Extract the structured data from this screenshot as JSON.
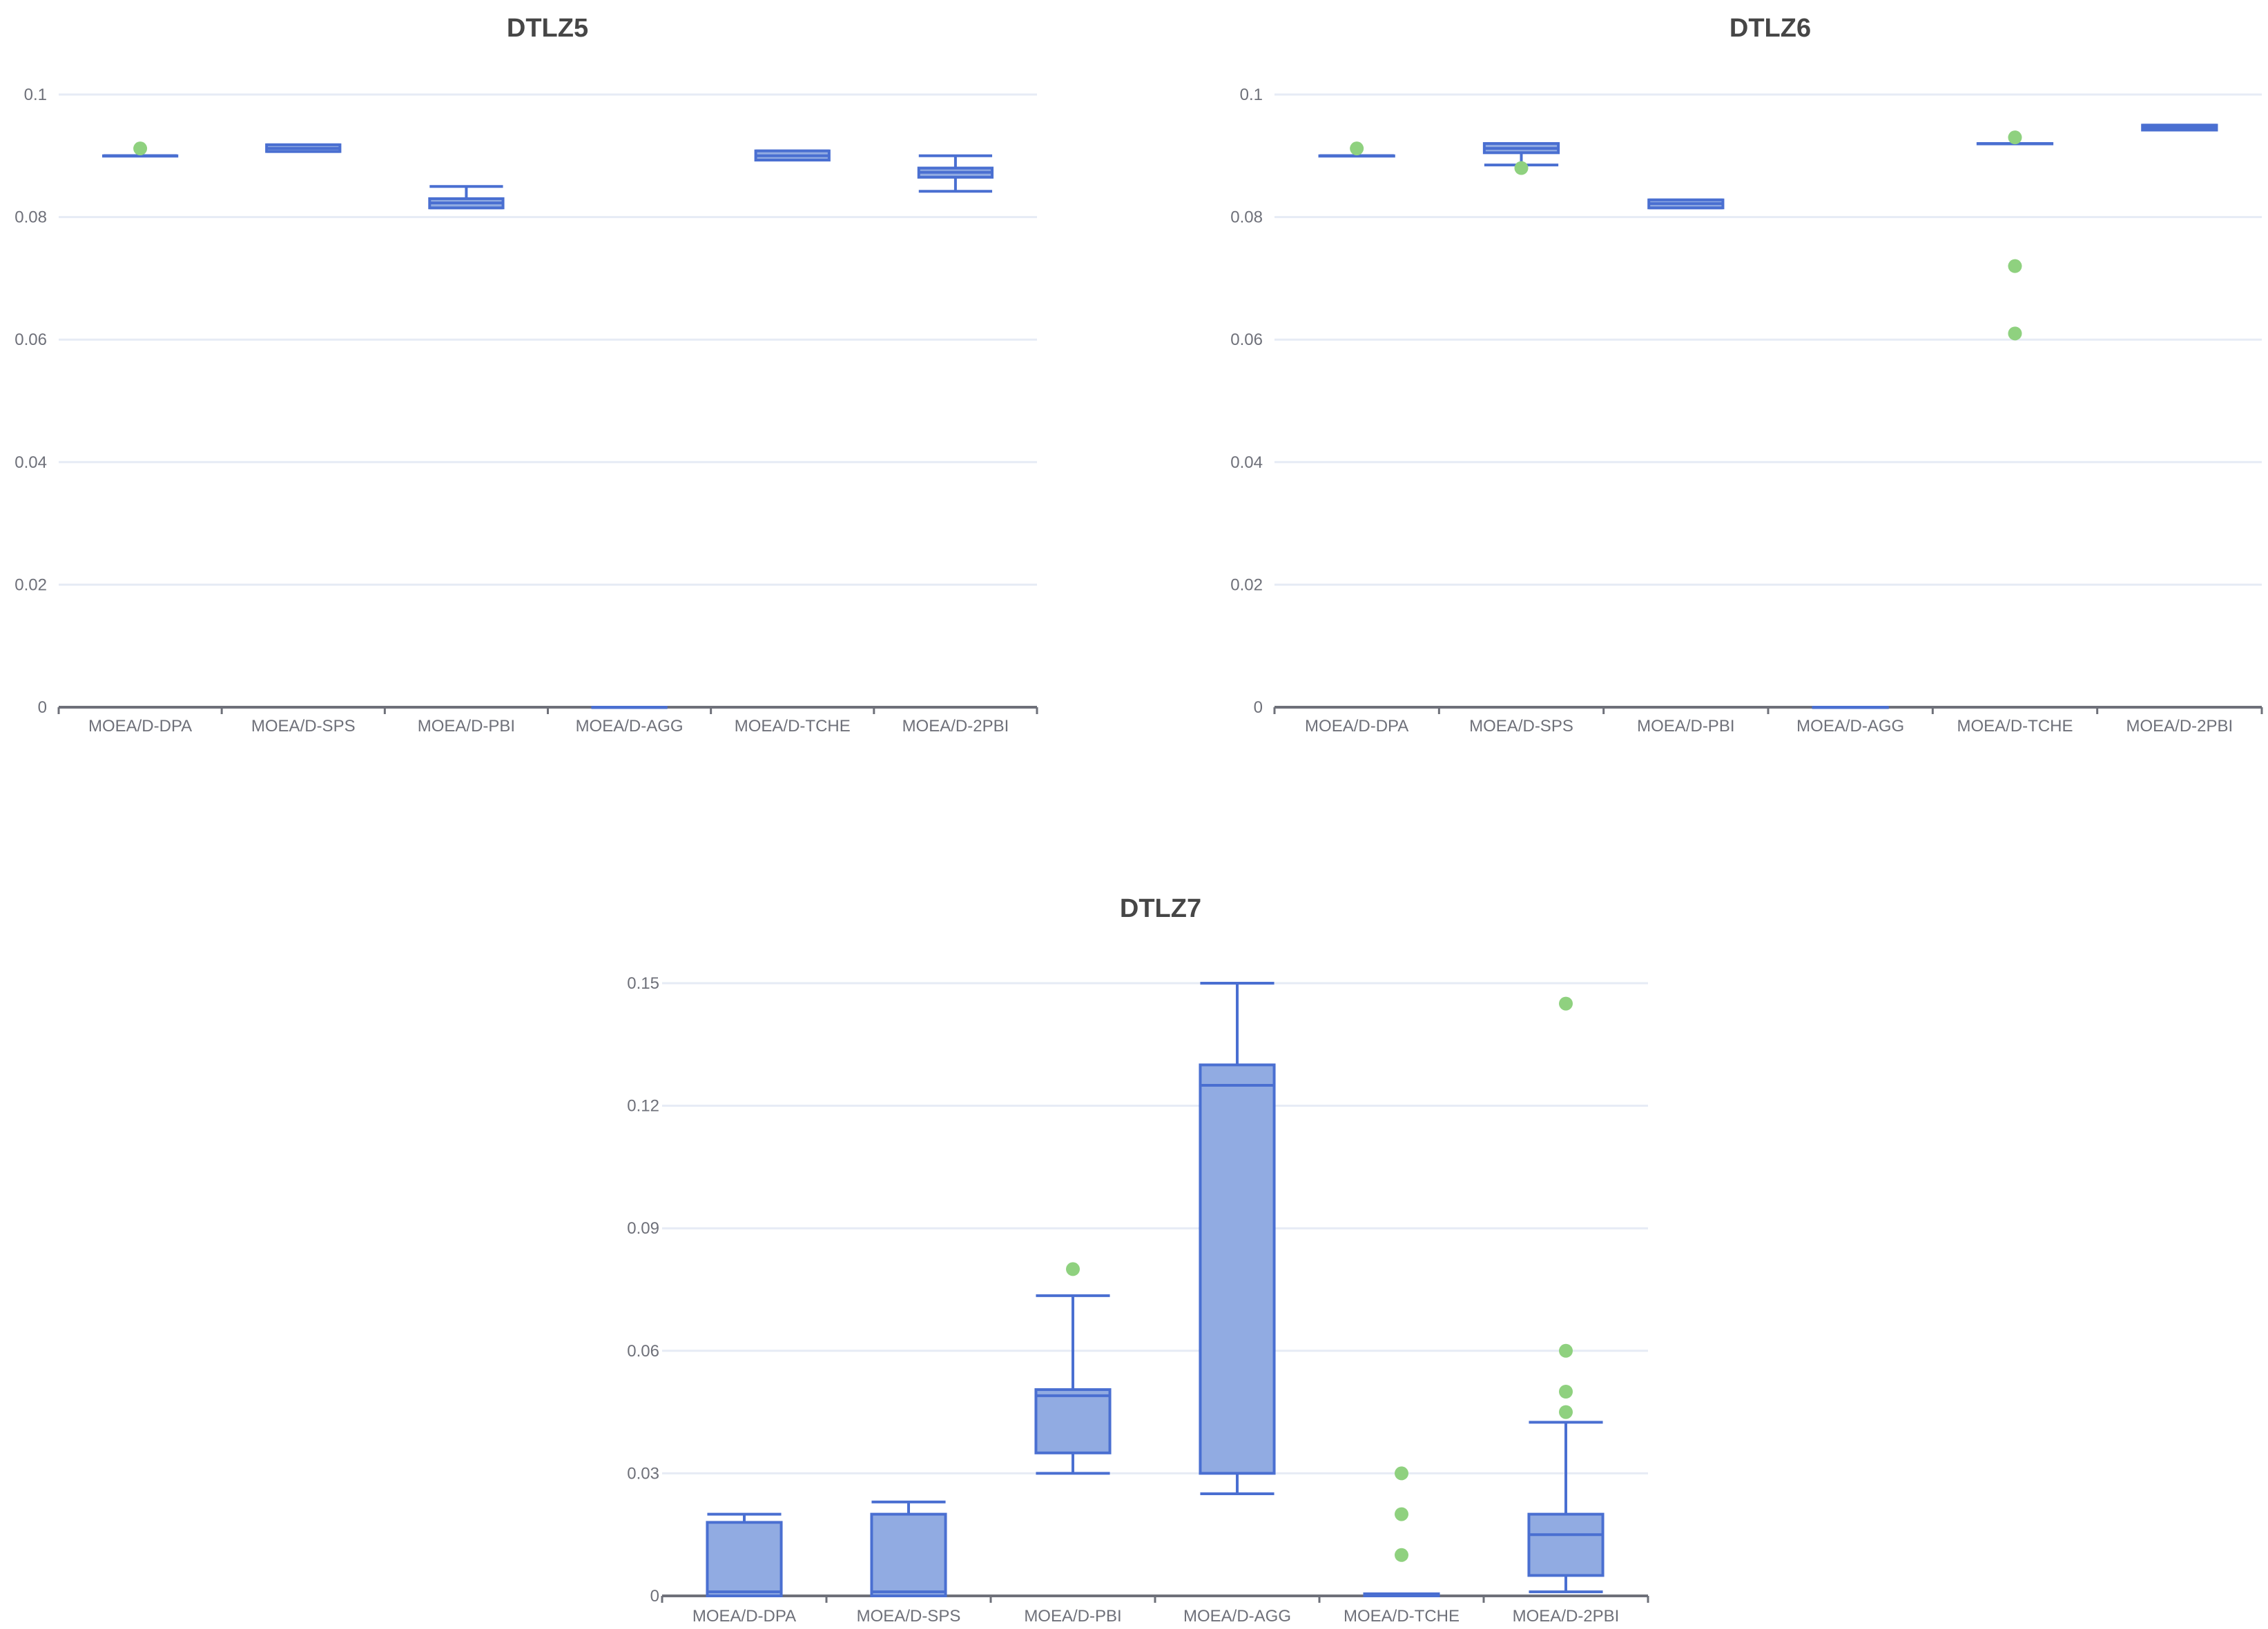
{
  "chart_data": [
    {
      "type": "boxplot",
      "title": "DTLZ5",
      "categories": [
        "MOEA/D-DPA",
        "MOEA/D-SPS",
        "MOEA/D-PBI",
        "MOEA/D-AGG",
        "MOEA/D-TCHE",
        "MOEA/D-2PBI"
      ],
      "yticks": [
        "0",
        "0.02",
        "0.04",
        "0.06",
        "0.08",
        "0.1"
      ],
      "ylim": [
        0,
        0.1
      ],
      "grid": true,
      "boxes": [
        {
          "min": 0.09,
          "q1": 0.09,
          "median": 0.09,
          "q3": 0.09,
          "max": 0.09
        },
        {
          "min": 0.0907,
          "q1": 0.0907,
          "median": 0.0912,
          "q3": 0.0918,
          "max": 0.0918
        },
        {
          "min": 0.0815,
          "q1": 0.0815,
          "median": 0.0823,
          "q3": 0.083,
          "max": 0.085
        },
        {
          "min": 0,
          "q1": 0,
          "median": 0,
          "q3": 0,
          "max": 0
        },
        {
          "min": 0.0893,
          "q1": 0.0893,
          "median": 0.09,
          "q3": 0.0908,
          "max": 0.0908
        },
        {
          "min": 0.0842,
          "q1": 0.0865,
          "median": 0.0873,
          "q3": 0.088,
          "max": 0.09
        }
      ],
      "outliers": [
        [
          0,
          0.0912
        ]
      ]
    },
    {
      "type": "boxplot",
      "title": "DTLZ6",
      "categories": [
        "MOEA/D-DPA",
        "MOEA/D-SPS",
        "MOEA/D-PBI",
        "MOEA/D-AGG",
        "MOEA/D-TCHE",
        "MOEA/D-2PBI"
      ],
      "yticks": [
        "0",
        "0.02",
        "0.04",
        "0.06",
        "0.08",
        "0.1"
      ],
      "ylim": [
        0,
        0.1
      ],
      "grid": true,
      "boxes": [
        {
          "min": 0.09,
          "q1": 0.09,
          "median": 0.09,
          "q3": 0.09,
          "max": 0.09
        },
        {
          "min": 0.0885,
          "q1": 0.0905,
          "median": 0.0912,
          "q3": 0.092,
          "max": 0.092
        },
        {
          "min": 0.0815,
          "q1": 0.0815,
          "median": 0.0822,
          "q3": 0.0828,
          "max": 0.0828
        },
        {
          "min": 0,
          "q1": 0,
          "median": 0,
          "q3": 0,
          "max": 0
        },
        {
          "min": 0.092,
          "q1": 0.092,
          "median": 0.092,
          "q3": 0.092,
          "max": 0.092
        },
        {
          "min": 0.0942,
          "q1": 0.0942,
          "median": 0.0946,
          "q3": 0.095,
          "max": 0.095
        }
      ],
      "outliers": [
        [
          0,
          0.0912
        ],
        [
          1,
          0.088
        ],
        [
          4,
          0.093
        ],
        [
          4,
          0.072
        ],
        [
          4,
          0.061
        ]
      ]
    },
    {
      "type": "boxplot",
      "title": "DTLZ7",
      "categories": [
        "MOEA/D-DPA",
        "MOEA/D-SPS",
        "MOEA/D-PBI",
        "MOEA/D-AGG",
        "MOEA/D-TCHE",
        "MOEA/D-2PBI"
      ],
      "yticks": [
        "0",
        "0.03",
        "0.06",
        "0.09",
        "0.12",
        "0.15"
      ],
      "ylim": [
        0,
        0.15
      ],
      "grid": true,
      "boxes": [
        {
          "min": 0,
          "q1": 0,
          "median": 0.001,
          "q3": 0.018,
          "max": 0.02
        },
        {
          "min": 0,
          "q1": 0,
          "median": 0.001,
          "q3": 0.02,
          "max": 0.023
        },
        {
          "min": 0.03,
          "q1": 0.035,
          "median": 0.049,
          "q3": 0.0505,
          "max": 0.0735
        },
        {
          "min": 0.025,
          "q1": 0.03,
          "median": 0.125,
          "q3": 0.13,
          "max": 0.15
        },
        {
          "min": 0,
          "q1": 0,
          "median": 0,
          "q3": 0.0005,
          "max": 0.0005
        },
        {
          "min": 0.001,
          "q1": 0.005,
          "median": 0.015,
          "q3": 0.02,
          "max": 0.0425
        }
      ],
      "outliers": [
        [
          2,
          0.08
        ],
        [
          4,
          0.03
        ],
        [
          4,
          0.02
        ],
        [
          4,
          0.01
        ],
        [
          5,
          0.145
        ],
        [
          5,
          0.06
        ],
        [
          5,
          0.05
        ],
        [
          5,
          0.045
        ]
      ]
    }
  ]
}
